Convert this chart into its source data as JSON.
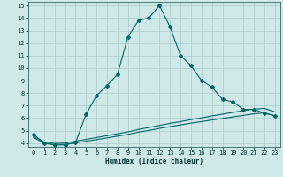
{
  "xlabel": "Humidex (Indice chaleur)",
  "bg_color": "#cfe8e8",
  "grid_color": "#b0d0d0",
  "line_color": "#006666",
  "xlim": [
    -0.5,
    23.5
  ],
  "ylim": [
    3.7,
    15.3
  ],
  "xticks": [
    0,
    1,
    2,
    3,
    4,
    5,
    6,
    7,
    8,
    9,
    10,
    11,
    12,
    13,
    14,
    15,
    16,
    17,
    18,
    19,
    20,
    21,
    22,
    23
  ],
  "yticks": [
    4,
    5,
    6,
    7,
    8,
    9,
    10,
    11,
    12,
    13,
    14,
    15
  ],
  "main_x": [
    0,
    1,
    2,
    3,
    4,
    5,
    6,
    7,
    8,
    9,
    10,
    11,
    12,
    13,
    14,
    15,
    16,
    17,
    18,
    19,
    20,
    21,
    22,
    23
  ],
  "main_y": [
    4.7,
    4.0,
    3.85,
    3.85,
    4.05,
    6.3,
    7.8,
    8.6,
    9.5,
    12.5,
    13.8,
    14.0,
    15.0,
    13.3,
    11.0,
    10.2,
    9.0,
    8.5,
    7.5,
    7.3,
    6.7,
    6.7,
    6.4,
    6.2
  ],
  "line2_x": [
    0,
    1,
    2,
    3,
    4,
    5,
    6,
    7,
    8,
    9,
    10,
    11,
    12,
    13,
    14,
    15,
    16,
    17,
    18,
    19,
    20,
    21,
    22,
    23
  ],
  "line2_y": [
    4.55,
    4.1,
    3.98,
    4.0,
    4.15,
    4.3,
    4.45,
    4.6,
    4.75,
    4.9,
    5.1,
    5.25,
    5.42,
    5.58,
    5.72,
    5.88,
    6.02,
    6.18,
    6.32,
    6.46,
    6.6,
    6.72,
    6.78,
    6.5
  ],
  "line3_x": [
    0,
    1,
    2,
    3,
    4,
    5,
    6,
    7,
    8,
    9,
    10,
    11,
    12,
    13,
    14,
    15,
    16,
    17,
    18,
    19,
    20,
    21,
    22,
    23
  ],
  "line3_y": [
    4.45,
    4.0,
    3.88,
    3.9,
    4.02,
    4.15,
    4.28,
    4.42,
    4.56,
    4.7,
    4.88,
    5.02,
    5.18,
    5.32,
    5.46,
    5.6,
    5.72,
    5.85,
    5.97,
    6.1,
    6.22,
    6.35,
    6.42,
    6.18
  ]
}
